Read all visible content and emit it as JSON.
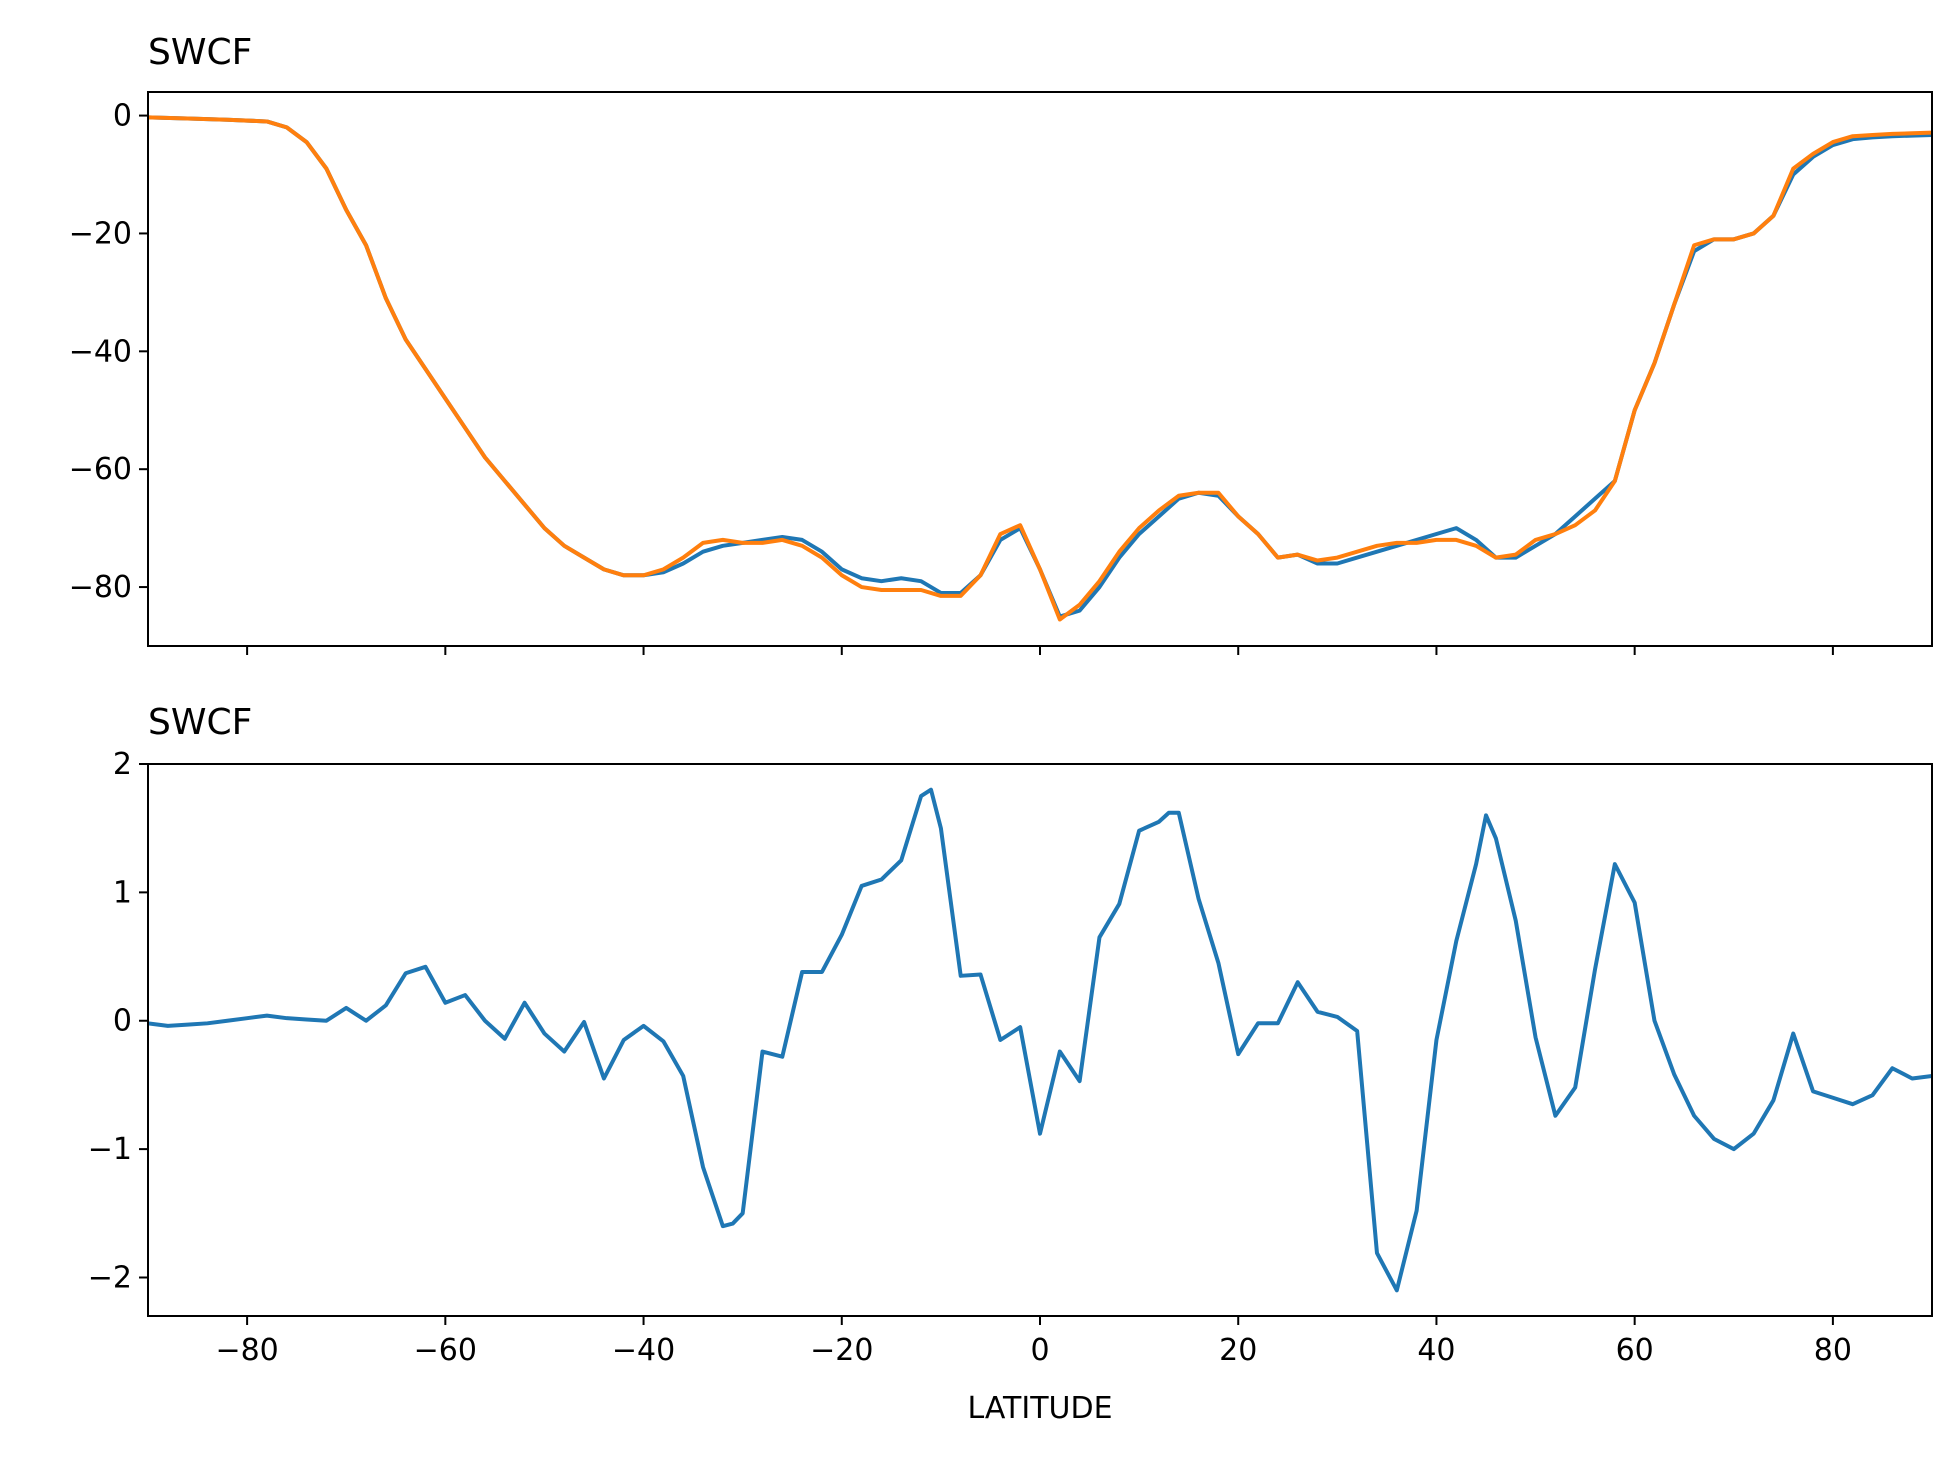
{
  "chart_data": [
    {
      "type": "line",
      "title": "SWCF",
      "xlabel": "",
      "ylabel": "",
      "xlim": [
        -90,
        90
      ],
      "ylim": [
        -90,
        4
      ],
      "xticks": [
        -80,
        -60,
        -40,
        -20,
        0,
        20,
        40,
        60,
        80
      ],
      "xtick_labels_visible": false,
      "yticks": [
        0,
        -20,
        -40,
        -60,
        -80
      ],
      "ytick_labels": [
        "0",
        "−20",
        "−40",
        "−60",
        "−80"
      ],
      "grid": false,
      "series": [
        {
          "color": "#1f77b4",
          "x": [
            -90,
            -86,
            -82,
            -78,
            -76,
            -74,
            -72,
            -70,
            -68,
            -66,
            -64,
            -62,
            -60,
            -58,
            -56,
            -54,
            -52,
            -50,
            -48,
            -46,
            -44,
            -42,
            -40,
            -38,
            -36,
            -34,
            -32,
            -30,
            -28,
            -26,
            -24,
            -22,
            -20,
            -18,
            -16,
            -14,
            -12,
            -10,
            -8,
            -6,
            -4,
            -2,
            0,
            2,
            4,
            6,
            8,
            10,
            12,
            14,
            16,
            18,
            20,
            22,
            24,
            26,
            28,
            30,
            32,
            34,
            36,
            38,
            40,
            42,
            44,
            46,
            48,
            50,
            52,
            54,
            56,
            58,
            60,
            62,
            64,
            66,
            68,
            70,
            72,
            74,
            76,
            78,
            80,
            82,
            84,
            86,
            88,
            90
          ],
          "y": [
            -0.3,
            -0.5,
            -0.7,
            -1.0,
            -2.0,
            -4.5,
            -9,
            -16,
            -22,
            -31,
            -38,
            -43,
            -48,
            -53,
            -58,
            -62,
            -66,
            -70,
            -73,
            -75,
            -77,
            -78,
            -78,
            -77.5,
            -76,
            -74,
            -73,
            -72.5,
            -72,
            -71.5,
            -72,
            -74,
            -77,
            -78.5,
            -79,
            -78.5,
            -79,
            -81,
            -81,
            -78,
            -72,
            -70,
            -77,
            -85,
            -84,
            -80,
            -75,
            -71,
            -68,
            -65,
            -64,
            -64.5,
            -68,
            -71,
            -75,
            -74.5,
            -76,
            -76,
            -75,
            -74,
            -73,
            -72,
            -71,
            -70,
            -72,
            -75,
            -75,
            -73,
            -71,
            -68,
            -65,
            -62,
            -50,
            -42,
            -32,
            -23,
            -21,
            -21,
            -20,
            -17,
            -10,
            -7,
            -5,
            -4,
            -3.7,
            -3.5,
            -3.4,
            -3.3
          ]
        },
        {
          "color": "#ff7f0e",
          "x": [
            -90,
            -86,
            -82,
            -78,
            -76,
            -74,
            -72,
            -70,
            -68,
            -66,
            -64,
            -62,
            -60,
            -58,
            -56,
            -54,
            -52,
            -50,
            -48,
            -46,
            -44,
            -42,
            -40,
            -38,
            -36,
            -34,
            -32,
            -30,
            -28,
            -26,
            -24,
            -22,
            -20,
            -18,
            -16,
            -14,
            -12,
            -10,
            -8,
            -6,
            -4,
            -2,
            0,
            2,
            4,
            6,
            8,
            10,
            12,
            14,
            16,
            18,
            20,
            22,
            24,
            26,
            28,
            30,
            32,
            34,
            36,
            38,
            40,
            42,
            44,
            46,
            48,
            50,
            52,
            54,
            56,
            58,
            60,
            62,
            64,
            66,
            68,
            70,
            72,
            74,
            76,
            78,
            80,
            82,
            84,
            86,
            88,
            90
          ],
          "y": [
            -0.3,
            -0.5,
            -0.7,
            -1.0,
            -2.0,
            -4.5,
            -9,
            -16,
            -22,
            -31,
            -38,
            -43,
            -48,
            -53,
            -58,
            -62,
            -66,
            -70,
            -73,
            -75,
            -77,
            -78,
            -78,
            -77,
            -75,
            -72.5,
            -72,
            -72.5,
            -72.5,
            -72,
            -73,
            -75,
            -78,
            -80,
            -80.5,
            -80.5,
            -80.5,
            -81.5,
            -81.5,
            -78,
            -71,
            -69.5,
            -77,
            -85.5,
            -83,
            -79,
            -74,
            -70,
            -67,
            -64.5,
            -64,
            -64,
            -68,
            -71,
            -75,
            -74.5,
            -75.5,
            -75,
            -74,
            -73,
            -72.5,
            -72.5,
            -72,
            -72,
            -73,
            -75,
            -74.5,
            -72,
            -71,
            -69.5,
            -67,
            -62,
            -50,
            -42,
            -32,
            -22,
            -21,
            -21,
            -20,
            -17,
            -9,
            -6.5,
            -4.5,
            -3.5,
            -3.3,
            -3.1,
            -3.0,
            -2.9
          ]
        }
      ]
    },
    {
      "type": "line",
      "title": "SWCF",
      "xlabel": "LATITUDE",
      "ylabel": "",
      "xlim": [
        -90,
        90
      ],
      "ylim": [
        -2.3,
        2.0
      ],
      "xticks": [
        -80,
        -60,
        -40,
        -20,
        0,
        20,
        40,
        60,
        80
      ],
      "xtick_labels": [
        "−80",
        "−60",
        "−40",
        "−20",
        "0",
        "20",
        "40",
        "60",
        "80"
      ],
      "yticks": [
        2,
        1,
        0,
        -1,
        -2
      ],
      "ytick_labels": [
        "2",
        "1",
        "0",
        "−1",
        "−2"
      ],
      "grid": false,
      "series": [
        {
          "color": "#1f77b4",
          "x": [
            -90,
            -88,
            -86,
            -84,
            -82,
            -80,
            -78,
            -76,
            -74,
            -72,
            -70,
            -68,
            -66,
            -64,
            -62,
            -60,
            -58,
            -56,
            -54,
            -52,
            -50,
            -48,
            -46,
            -44,
            -42,
            -40,
            -38,
            -36,
            -34,
            -32,
            -31,
            -30,
            -28,
            -26,
            -24,
            -22,
            -20,
            -18,
            -16,
            -14,
            -12,
            -11,
            -10,
            -8,
            -6,
            -4,
            -2,
            0,
            2,
            4,
            6,
            8,
            10,
            12,
            13,
            14,
            16,
            18,
            20,
            22,
            24,
            26,
            28,
            30,
            32,
            34,
            36,
            38,
            40,
            42,
            44,
            45,
            46,
            48,
            50,
            52,
            54,
            56,
            58,
            60,
            62,
            64,
            66,
            68,
            70,
            72,
            74,
            76,
            78,
            80,
            82,
            84,
            86,
            88,
            90
          ],
          "y": [
            -0.02,
            -0.04,
            -0.03,
            -0.02,
            0,
            0.02,
            0.04,
            0.02,
            0.01,
            0.0,
            0.1,
            0.0,
            0.12,
            0.37,
            0.42,
            0.14,
            0.2,
            0.0,
            -0.14,
            0.14,
            -0.1,
            -0.24,
            -0.01,
            -0.45,
            -0.15,
            -0.04,
            -0.16,
            -0.43,
            -1.14,
            -1.6,
            -1.58,
            -1.5,
            -0.24,
            -0.28,
            0.38,
            0.38,
            0.67,
            1.05,
            1.1,
            1.25,
            1.75,
            1.8,
            1.5,
            0.35,
            0.36,
            -0.15,
            -0.05,
            -0.88,
            -0.24,
            -0.47,
            0.65,
            0.91,
            1.48,
            1.55,
            1.62,
            1.62,
            0.95,
            0.45,
            -0.26,
            -0.02,
            -0.02,
            0.3,
            0.07,
            0.03,
            -0.08,
            -1.81,
            -2.1,
            -1.48,
            -0.15,
            0.62,
            1.22,
            1.6,
            1.42,
            0.78,
            -0.13,
            -0.74,
            -0.52,
            0.4,
            1.22,
            0.92,
            0.0,
            -0.42,
            -0.74,
            -0.92,
            -1.0,
            -0.88,
            -0.62,
            -0.1,
            -0.55,
            -0.6,
            -0.65,
            -0.58,
            -0.37,
            -0.45,
            -0.43
          ]
        }
      ]
    }
  ]
}
